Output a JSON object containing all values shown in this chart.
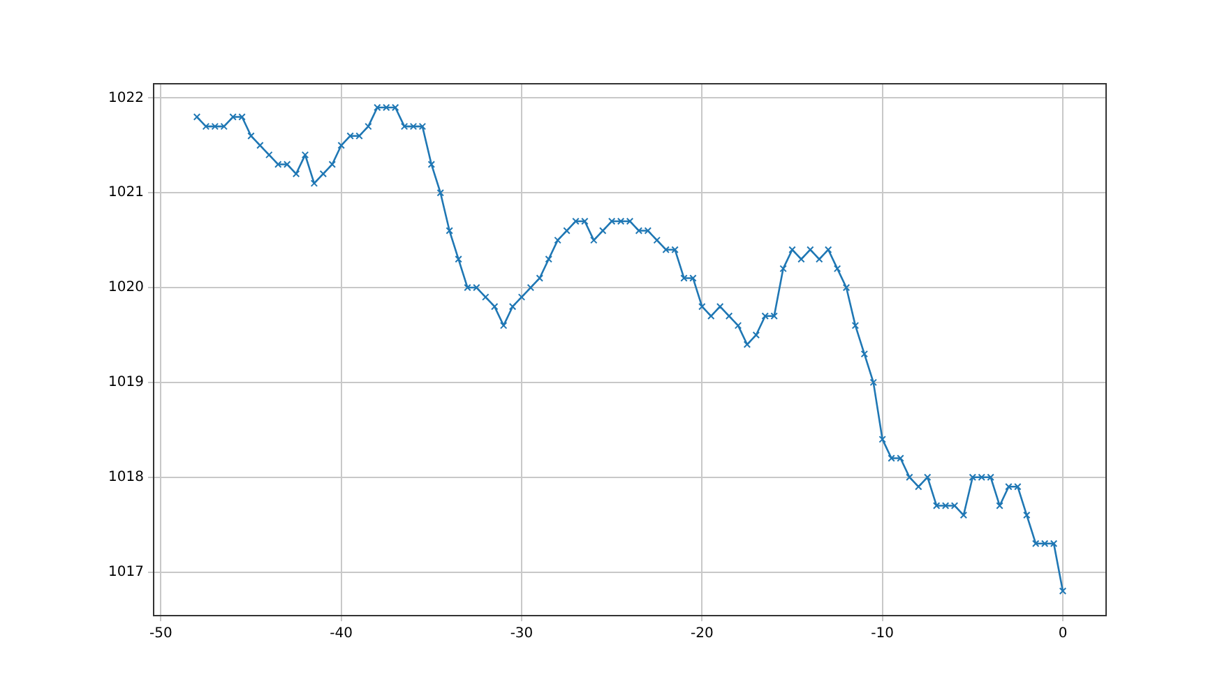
{
  "chart_data": {
    "type": "line",
    "x": [
      -48,
      -47.5,
      -47,
      -46.5,
      -46,
      -45.5,
      -45,
      -44.5,
      -44,
      -43.5,
      -43,
      -42.5,
      -42,
      -41.5,
      -41,
      -40.5,
      -40,
      -39.5,
      -39,
      -38.5,
      -38,
      -37.5,
      -37,
      -36.5,
      -36,
      -35.5,
      -35,
      -34.5,
      -34,
      -33.5,
      -33,
      -32.5,
      -32,
      -31.5,
      -31,
      -30.5,
      -30,
      -29.5,
      -29,
      -28.5,
      -28,
      -27.5,
      -27,
      -26.5,
      -26,
      -25.5,
      -25,
      -24.5,
      -24,
      -23.5,
      -23,
      -22.5,
      -22,
      -21.5,
      -21,
      -20.5,
      -20,
      -19.5,
      -19,
      -18.5,
      -18,
      -17.5,
      -17,
      -16.5,
      -16,
      -15.5,
      -15,
      -14.5,
      -14,
      -13.5,
      -13,
      -12.5,
      -12,
      -11.5,
      -11,
      -10.5,
      -10,
      -9.5,
      -9,
      -8.5,
      -8,
      -7.5,
      -7,
      -6.5,
      -6,
      -5.5,
      -5,
      -4.5,
      -4,
      -3.5,
      -3,
      -2.5,
      -2,
      -1.5,
      -1,
      -0.5,
      0
    ],
    "series": [
      {
        "color": "#1f77b4",
        "values": [
          1021.8,
          1021.7,
          1021.7,
          1021.7,
          1021.8,
          1021.8,
          1021.6,
          1021.5,
          1021.4,
          1021.3,
          1021.3,
          1021.2,
          1021.4,
          1021.1,
          1021.2,
          1021.3,
          1021.5,
          1021.6,
          1021.6,
          1021.7,
          1021.9,
          1021.9,
          1021.9,
          1021.7,
          1021.7,
          1021.7,
          1021.3,
          1021.0,
          1020.6,
          1020.3,
          1020.0,
          1020.0,
          1019.9,
          1019.8,
          1019.6,
          1019.8,
          1019.9,
          1020.0,
          1020.1,
          1020.3,
          1020.5,
          1020.6,
          1020.7,
          1020.7,
          1020.5,
          1020.6,
          1020.7,
          1020.7,
          1020.7,
          1020.6,
          1020.6,
          1020.5,
          1020.4,
          1020.4,
          1020.1,
          1020.1,
          1019.8,
          1019.7,
          1019.8,
          1019.7,
          1019.6,
          1019.4,
          1019.5,
          1019.7,
          1019.7,
          1020.2,
          1020.4,
          1020.3,
          1020.4,
          1020.3,
          1020.4,
          1020.2,
          1020.0,
          1019.6,
          1019.3,
          1019.0,
          1018.4,
          1018.2,
          1018.2,
          1018.0,
          1017.9,
          1018.0,
          1017.7,
          1017.7,
          1017.7,
          1017.6,
          1018.0,
          1018.0,
          1018.0,
          1017.7,
          1017.9,
          1017.9,
          1017.6,
          1017.3,
          1017.3,
          1017.3,
          1016.8
        ]
      }
    ],
    "xlim": [
      -50.4,
      2.4
    ],
    "xticks": [
      -50,
      -40,
      -30,
      -20,
      -10,
      0
    ],
    "ylim": [
      1016.54,
      1022.15
    ],
    "yticks": [
      1017,
      1018,
      1019,
      1020,
      1021,
      1022
    ],
    "grid": true,
    "marker": "cross",
    "line_style": "solid"
  }
}
